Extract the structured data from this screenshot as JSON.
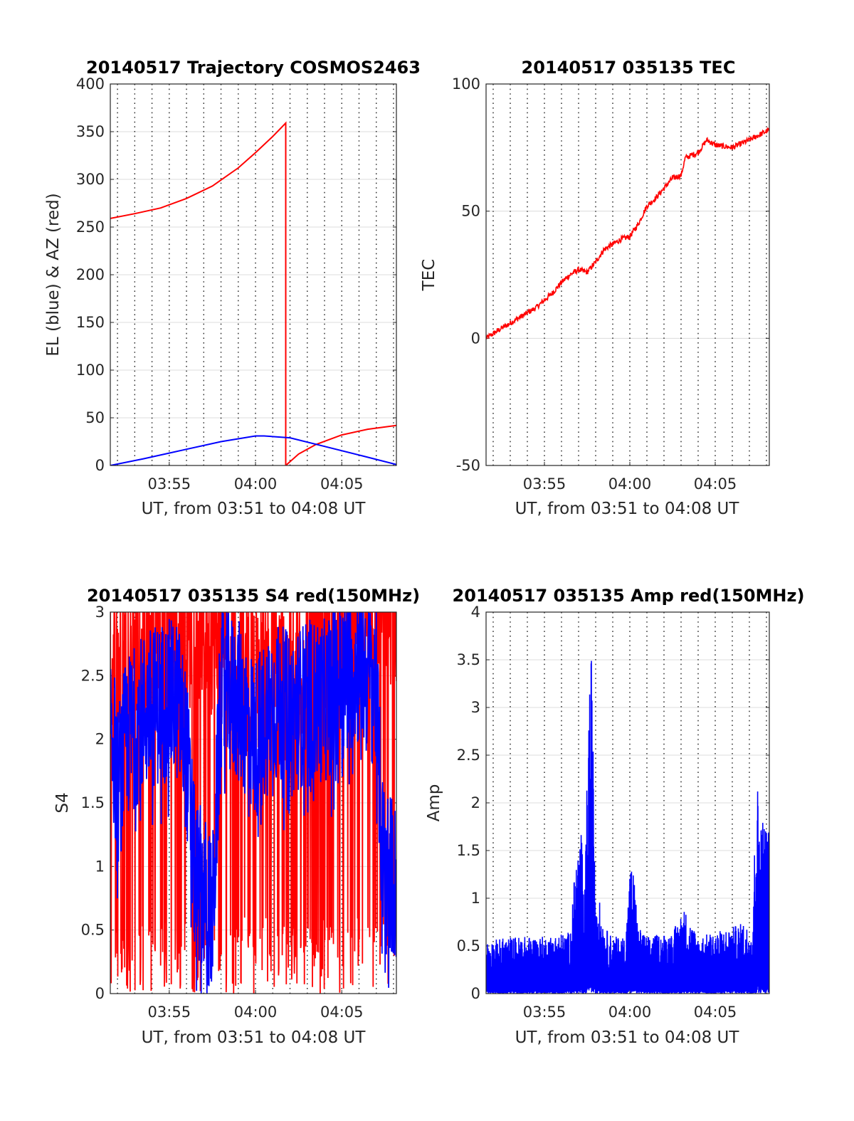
{
  "chart_data": [
    {
      "id": "trajectory",
      "type": "line",
      "title": "20140517 Trajectory COSMOS2463",
      "xlabel": "UT, from 03:51 to 04:08 UT",
      "ylabel": "EL (blue) & AZ (red)",
      "xlim": [
        "03:51:35",
        "04:08:10"
      ],
      "ylim": [
        0,
        400
      ],
      "yticks": [
        0,
        50,
        100,
        150,
        200,
        250,
        300,
        350,
        400
      ],
      "xticks": [
        "03:55",
        "04:00",
        "04:05"
      ],
      "grid": "on",
      "series": [
        {
          "color": "#ff0000",
          "segments": [
            [
              [
                "03:51:35",
                259
              ],
              [
                "03:53:00",
                264
              ],
              [
                "03:54:30",
                270
              ],
              [
                "03:56:00",
                280
              ],
              [
                "03:57:30",
                293
              ],
              [
                "03:59:00",
                312
              ],
              [
                "04:00:00",
                328
              ],
              [
                "04:01:00",
                345
              ],
              [
                "04:01:45",
                359
              ],
              [
                "04:01:45",
                0
              ]
            ],
            [
              [
                "04:01:45",
                0
              ],
              [
                "04:02:30",
                12
              ],
              [
                "04:03:30",
                22
              ],
              [
                "04:05:00",
                32
              ],
              [
                "04:06:30",
                38
              ],
              [
                "04:08:10",
                42
              ]
            ]
          ]
        },
        {
          "color": "#0000ff",
          "segments": [
            [
              [
                "03:51:35",
                0
              ],
              [
                "03:53:30",
                7
              ],
              [
                "03:56:00",
                17
              ],
              [
                "03:58:00",
                25
              ],
              [
                "04:00:00",
                31
              ],
              [
                "04:00:30",
                31
              ],
              [
                "04:02:00",
                29
              ],
              [
                "04:04:00",
                20
              ],
              [
                "04:06:00",
                11
              ],
              [
                "04:08:10",
                1
              ]
            ]
          ]
        }
      ]
    },
    {
      "id": "tec",
      "type": "line",
      "title": "20140517 035135 TEC",
      "xlabel": "UT, from 03:51 to 04:08 UT",
      "ylabel": "TEC",
      "xlim": [
        "03:51:35",
        "04:08:10"
      ],
      "ylim": [
        -50,
        100
      ],
      "yticks": [
        -50,
        0,
        50,
        100
      ],
      "xticks": [
        "03:55",
        "04:00",
        "04:05"
      ],
      "grid": "on",
      "series": [
        {
          "color": "#ff0000",
          "points": [
            [
              "03:51:35",
              0
            ],
            [
              "03:52:30",
              4
            ],
            [
              "03:53:30",
              8
            ],
            [
              "03:54:30",
              12
            ],
            [
              "03:55:30",
              18
            ],
            [
              "03:56:00",
              22
            ],
            [
              "03:56:30",
              25
            ],
            [
              "03:57:00",
              27
            ],
            [
              "03:57:30",
              26
            ],
            [
              "03:58:00",
              30
            ],
            [
              "03:58:30",
              35
            ],
            [
              "03:59:00",
              37
            ],
            [
              "03:59:30",
              39
            ],
            [
              "04:00:00",
              40
            ],
            [
              "04:00:30",
              45
            ],
            [
              "04:01:00",
              52
            ],
            [
              "04:01:30",
              55
            ],
            [
              "04:02:00",
              59
            ],
            [
              "04:02:30",
              63
            ],
            [
              "04:03:00",
              64
            ],
            [
              "04:03:15",
              71
            ],
            [
              "04:04:00",
              73
            ],
            [
              "04:04:30",
              78
            ],
            [
              "04:05:00",
              76
            ],
            [
              "04:06:00",
              75
            ],
            [
              "04:07:00",
              78
            ],
            [
              "04:08:10",
              82
            ]
          ]
        }
      ]
    },
    {
      "id": "s4",
      "type": "line",
      "title": "20140517 035135 S4 red(150MHz)",
      "xlabel": "UT, from 03:51 to 04:08 UT",
      "ylabel": "S4",
      "xlim": [
        "03:51:35",
        "04:08:10"
      ],
      "ylim": [
        0,
        3
      ],
      "yticks": [
        0,
        0.5,
        1,
        1.5,
        2,
        2.5,
        3
      ],
      "xticks": [
        "03:55",
        "04:00",
        "04:05"
      ],
      "grid": "on",
      "series": [
        {
          "color": "#ff0000",
          "profile": [
            [
              "03:51:35",
              2.2
            ],
            [
              "03:52:30",
              2.4
            ],
            [
              "03:54:00",
              2.5
            ],
            [
              "03:55:00",
              2.6
            ],
            [
              "03:56:00",
              2.6
            ],
            [
              "03:57:00",
              2.7
            ],
            [
              "03:58:00",
              2.5
            ],
            [
              "03:59:00",
              2.4
            ],
            [
              "04:00:00",
              2.2
            ],
            [
              "04:01:00",
              2.3
            ],
            [
              "04:02:00",
              2.2
            ],
            [
              "04:03:00",
              2.4
            ],
            [
              "04:04:00",
              2.5
            ],
            [
              "04:05:00",
              2.6
            ],
            [
              "04:06:00",
              2.7
            ],
            [
              "04:07:00",
              2.9
            ],
            [
              "04:08:10",
              2.8
            ]
          ]
        },
        {
          "color": "#0000ff",
          "profile": [
            [
              "03:51:35",
              2.3
            ],
            [
              "03:52:00",
              1.6
            ],
            [
              "03:52:30",
              2.0
            ],
            [
              "03:53:30",
              2.2
            ],
            [
              "03:54:30",
              2.3
            ],
            [
              "03:55:30",
              2.3
            ],
            [
              "03:56:00",
              1.9
            ],
            [
              "03:56:30",
              0.9
            ],
            [
              "03:57:00",
              0.8
            ],
            [
              "03:57:30",
              0.55
            ],
            [
              "03:58:00",
              2.4
            ],
            [
              "03:59:00",
              2.3
            ],
            [
              "04:00:00",
              2.0
            ],
            [
              "04:01:00",
              2.3
            ],
            [
              "04:02:00",
              2.2
            ],
            [
              "04:03:00",
              2.3
            ],
            [
              "04:04:00",
              2.3
            ],
            [
              "04:05:00",
              2.5
            ],
            [
              "04:06:00",
              2.6
            ],
            [
              "04:07:00",
              2.4
            ],
            [
              "04:07:20",
              1.1
            ],
            [
              "04:08:10",
              0.85
            ]
          ]
        }
      ]
    },
    {
      "id": "amp",
      "type": "line",
      "title": "20140517 035135 Amp red(150MHz)",
      "xlabel": "UT, from 03:51 to 04:08 UT",
      "ylabel": "Amp",
      "xlim": [
        "03:51:35",
        "04:08:10"
      ],
      "ylim": [
        0,
        4
      ],
      "yticks": [
        0,
        0.5,
        1,
        1.5,
        2,
        2.5,
        3,
        3.5,
        4
      ],
      "xticks": [
        "03:55",
        "04:00",
        "04:05"
      ],
      "grid": "on",
      "series": [
        {
          "color": "#0000ff",
          "envelope": [
            [
              "03:51:35",
              0.55
            ],
            [
              "03:53:00",
              0.6
            ],
            [
              "03:55:00",
              0.6
            ],
            [
              "03:56:30",
              0.65
            ],
            [
              "03:56:50",
              1.4
            ],
            [
              "03:57:10",
              1.75
            ],
            [
              "03:57:20",
              0.8
            ],
            [
              "03:57:35",
              3.1
            ],
            [
              "03:57:45",
              3.55
            ],
            [
              "03:58:00",
              1.2
            ],
            [
              "03:58:30",
              0.7
            ],
            [
              "03:59:00",
              0.6
            ],
            [
              "03:59:45",
              0.6
            ],
            [
              "04:00:00",
              1.3
            ],
            [
              "04:00:10",
              1.4
            ],
            [
              "04:00:30",
              0.7
            ],
            [
              "04:01:00",
              0.6
            ],
            [
              "04:02:30",
              0.65
            ],
            [
              "04:03:10",
              0.9
            ],
            [
              "04:04:00",
              0.6
            ],
            [
              "04:05:00",
              0.65
            ],
            [
              "04:06:00",
              0.7
            ],
            [
              "04:06:40",
              0.75
            ],
            [
              "04:07:10",
              0.65
            ],
            [
              "04:07:25",
              2.3
            ],
            [
              "04:07:40",
              1.9
            ],
            [
              "04:08:10",
              1.75
            ]
          ]
        }
      ]
    }
  ]
}
